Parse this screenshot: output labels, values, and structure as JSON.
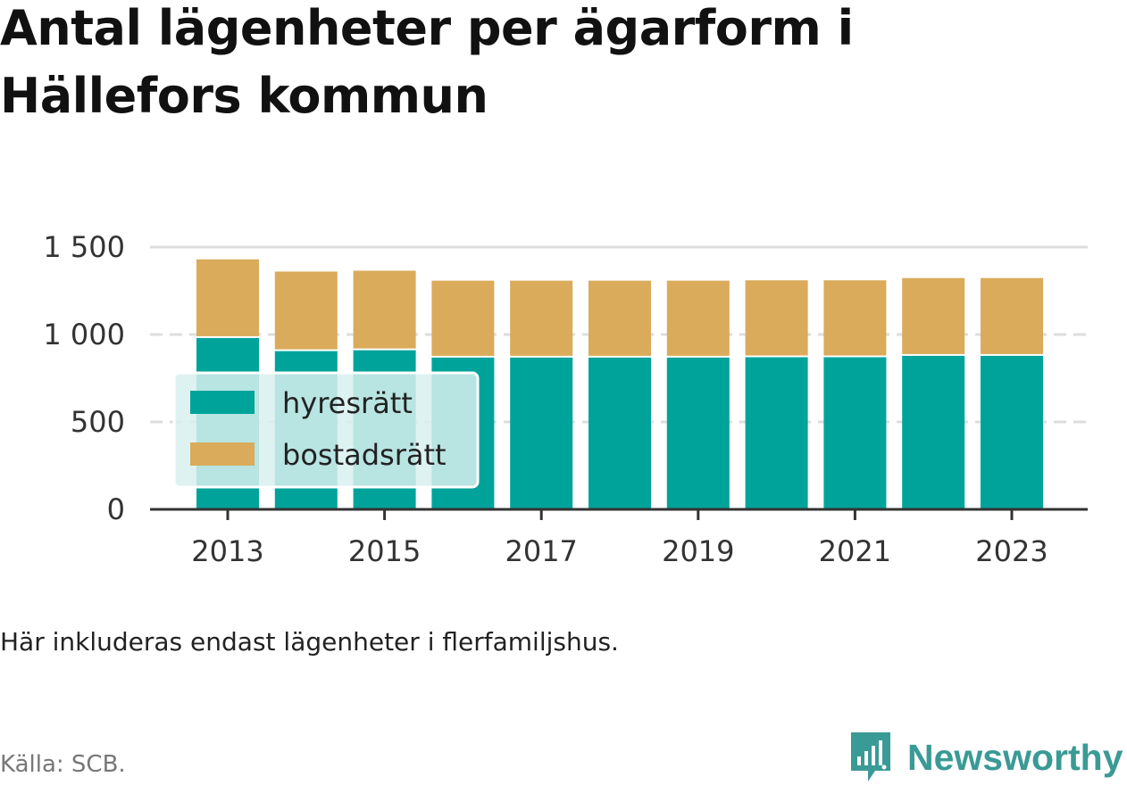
{
  "title": "Antal lägenheter per ägarform i Hällefors kommun",
  "note": "Här inkluderas endast lägenheter i flerfamiljshus.",
  "source": "Källa: SCB.",
  "brand": {
    "name": "Newsworthy",
    "icon": "newsworthy-logo-icon",
    "color": "#3a9a95"
  },
  "colors": {
    "hyresratt": "#00a39a",
    "bostadsratt": "#d9ab5a",
    "legend_bg": "#d8f0ef",
    "grid": "#dddddd",
    "axis": "#333333"
  },
  "chart_data": {
    "type": "bar",
    "stacked": true,
    "categories": [
      "2013",
      "2014",
      "2015",
      "2016",
      "2017",
      "2018",
      "2019",
      "2020",
      "2021",
      "2022",
      "2023"
    ],
    "xticks": [
      "2013",
      "2015",
      "2017",
      "2019",
      "2021",
      "2023"
    ],
    "series": [
      {
        "name": "hyresrätt",
        "values": [
          980,
          905,
          910,
          868,
          868,
          868,
          868,
          870,
          870,
          878,
          878
        ]
      },
      {
        "name": "bostadsrätt",
        "values": [
          450,
          455,
          455,
          440,
          440,
          440,
          440,
          440,
          440,
          445,
          445
        ]
      }
    ],
    "ylim": [
      0,
      1500
    ],
    "yticks": [
      0,
      500,
      1000,
      1500
    ],
    "ytick_labels": [
      "0",
      "500",
      "1 000",
      "1 500"
    ],
    "grid": true,
    "legend_position": "inside-left"
  }
}
